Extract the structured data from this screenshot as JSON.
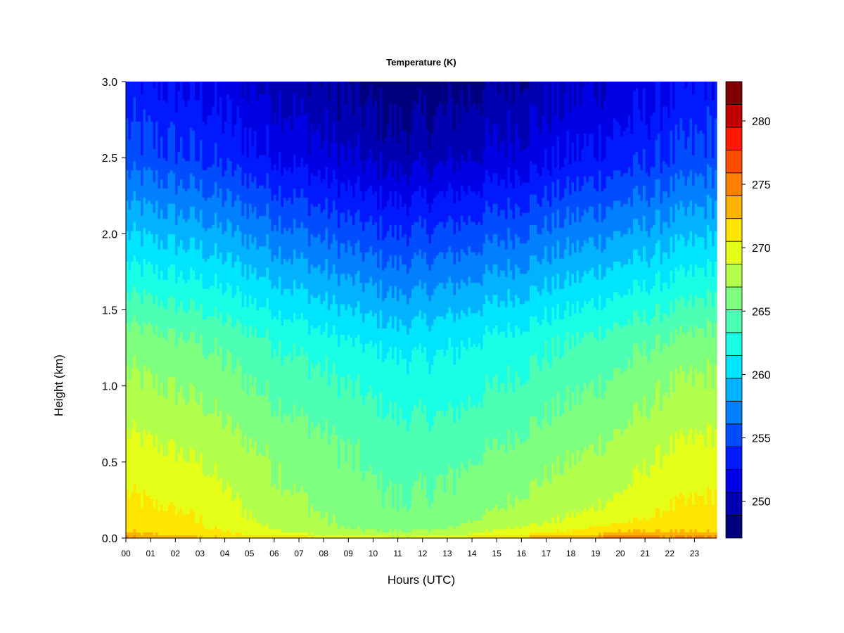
{
  "chart_data": {
    "type": "heatmap",
    "title": "Temperature (K)",
    "xlabel": "Hours (UTC)",
    "ylabel": "Height (km)",
    "xlim": [
      0,
      23.9
    ],
    "ylim": [
      0.0,
      3.0
    ],
    "x_ticks": [
      0,
      1,
      2,
      3,
      4,
      5,
      6,
      7,
      8,
      9,
      10,
      11,
      12,
      13,
      14,
      15,
      16,
      17,
      18,
      19,
      20,
      21,
      22,
      23
    ],
    "x_tick_labels": [
      "00",
      "01",
      "02",
      "03",
      "04",
      "05",
      "06",
      "07",
      "08",
      "09",
      "10",
      "11",
      "12",
      "13",
      "14",
      "15",
      "16",
      "17",
      "18",
      "19",
      "20",
      "21",
      "22",
      "23"
    ],
    "y_ticks": [
      0.0,
      0.5,
      1.0,
      1.5,
      2.0,
      2.5,
      3.0
    ],
    "y_tick_labels": [
      "0.0",
      "0.5",
      "1.0",
      "1.5",
      "2.0",
      "2.5",
      "3.0"
    ],
    "colorbar": {
      "levels": [
        248,
        250,
        252,
        254,
        256,
        258,
        260,
        262,
        264,
        266,
        268,
        270,
        272,
        274,
        276,
        278,
        280,
        282,
        284
      ],
      "colors": [
        "#00007f",
        "#0000b2",
        "#0000e5",
        "#0019ff",
        "#004cff",
        "#007fff",
        "#00b2ff",
        "#00e5ff",
        "#19ffe5",
        "#4cffb2",
        "#7fff7f",
        "#b2ff4c",
        "#e5ff19",
        "#ffe500",
        "#ffb200",
        "#ff7f00",
        "#ff4c00",
        "#ff1900",
        "#c00000",
        "#7f0000"
      ],
      "ticks": [
        250,
        255,
        260,
        265,
        270,
        275,
        280
      ],
      "tick_labels": [
        "250",
        "255",
        "260",
        "265",
        "270",
        "275",
        "280"
      ]
    },
    "profile_heights_km": [
      0.0,
      0.01,
      0.03,
      0.06,
      0.1,
      0.15,
      0.2,
      0.3,
      0.4,
      0.5,
      0.6,
      0.7,
      0.8,
      0.9,
      1.0,
      1.1,
      1.2,
      1.3,
      1.4,
      1.5,
      1.6,
      1.7,
      1.8,
      1.9,
      2.0,
      2.1,
      2.2,
      2.3,
      2.4,
      2.5,
      2.6,
      2.7,
      2.8,
      2.9,
      3.0
    ],
    "profiles": [
      {
        "hour": 0,
        "temps_K": [
          279.5,
          278,
          276.5,
          275.5,
          275,
          275,
          274.5,
          274,
          273.5,
          273,
          272.5,
          272,
          271.5,
          271,
          270.5,
          270,
          269.5,
          269,
          268,
          267,
          266,
          265,
          264,
          263,
          262,
          261,
          260,
          259,
          258,
          257,
          256.5,
          256,
          255.5,
          255,
          254.5
        ]
      },
      {
        "hour": 3,
        "temps_K": [
          278,
          276,
          275,
          274.5,
          274,
          274,
          273.5,
          273,
          272.5,
          272,
          271.5,
          271,
          270.5,
          270,
          269.5,
          269,
          268.5,
          268,
          267,
          266,
          265,
          264,
          263,
          262,
          261,
          260,
          259,
          258,
          257,
          256,
          255.5,
          255,
          254.5,
          254,
          253.5
        ]
      },
      {
        "hour": 6,
        "temps_K": [
          277,
          275,
          273,
          272,
          271.5,
          271,
          271,
          270.5,
          270,
          270,
          269.5,
          269,
          268.5,
          268,
          267.5,
          267,
          266.5,
          266,
          265,
          264,
          263,
          262,
          261,
          260,
          259,
          258,
          257,
          256,
          255,
          254,
          253.5,
          253,
          252.5,
          252,
          251.5
        ]
      },
      {
        "hour": 9,
        "temps_K": [
          275,
          273,
          271,
          270,
          269.5,
          269.5,
          269,
          269,
          268.5,
          268,
          268,
          267.5,
          267,
          266.5,
          266,
          265.5,
          265,
          264,
          263,
          262,
          261,
          260,
          259,
          258,
          257,
          256,
          255,
          254,
          253,
          252,
          251.5,
          251,
          250.5,
          250,
          249.5
        ]
      },
      {
        "hour": 11,
        "temps_K": [
          274,
          272,
          270.5,
          269.5,
          269,
          268.5,
          268,
          268,
          267.5,
          267,
          267,
          266.5,
          266,
          265.5,
          265,
          264.5,
          264,
          263,
          262,
          261,
          260,
          259,
          258,
          257,
          256,
          255,
          254,
          253,
          252,
          251,
          250.5,
          250,
          249.5,
          249,
          248.5
        ]
      },
      {
        "hour": 13,
        "temps_K": [
          275,
          273,
          271,
          270,
          269.5,
          269,
          268.5,
          268,
          268,
          267.5,
          267,
          266.5,
          266,
          265.5,
          265,
          264.5,
          264,
          263.5,
          262.5,
          261.5,
          260.5,
          259.5,
          258.5,
          257.5,
          256.5,
          255.5,
          254.5,
          253.5,
          252.5,
          251.5,
          251,
          250.5,
          250,
          249.5,
          249
        ]
      },
      {
        "hour": 16,
        "temps_K": [
          278,
          276,
          274,
          272.5,
          271.5,
          271,
          270.5,
          270,
          269.5,
          269,
          268.5,
          268,
          267.5,
          267,
          266.5,
          266,
          265.5,
          265,
          264,
          263,
          262,
          261,
          260,
          259,
          258,
          257,
          256,
          255,
          254,
          253,
          252.5,
          252,
          251.5,
          251,
          250.5
        ]
      },
      {
        "hour": 18,
        "temps_K": [
          279,
          277,
          275,
          273.5,
          272.5,
          272,
          271.5,
          271,
          270.5,
          270,
          269.5,
          269,
          268.5,
          268,
          267.5,
          267,
          266.5,
          266,
          265,
          264,
          263,
          262,
          261,
          260,
          259,
          258,
          257,
          256,
          255,
          254,
          253.5,
          253,
          252.5,
          252,
          251.5
        ]
      },
      {
        "hour": 20,
        "temps_K": [
          281,
          279,
          277,
          275.5,
          274,
          273,
          272.5,
          272,
          271.5,
          271,
          270.5,
          270,
          269.5,
          269,
          268.5,
          268,
          267.5,
          267,
          266,
          265,
          264,
          263,
          262,
          261,
          260,
          259,
          258,
          257,
          256,
          255,
          254.5,
          254,
          253.5,
          253,
          252.5
        ]
      },
      {
        "hour": 22,
        "temps_K": [
          280,
          278,
          276.5,
          275.5,
          275,
          274.5,
          274,
          273.5,
          273,
          272.5,
          272,
          271.5,
          271,
          270.5,
          270,
          269.5,
          269,
          268,
          267,
          266,
          265,
          264,
          263,
          262,
          261,
          260,
          259,
          258,
          257,
          256,
          255.5,
          255,
          254.5,
          254,
          253.5
        ]
      },
      {
        "hour": 23.9,
        "temps_K": [
          279.5,
          278,
          276.5,
          275.5,
          275,
          275,
          274.5,
          274,
          273.5,
          273,
          272.5,
          272,
          271.5,
          271,
          270.5,
          270,
          269.5,
          269,
          268,
          267,
          266,
          265,
          264,
          263,
          262,
          261,
          260,
          259,
          258,
          257,
          256.5,
          256,
          255.5,
          255,
          254.5
        ]
      }
    ]
  }
}
